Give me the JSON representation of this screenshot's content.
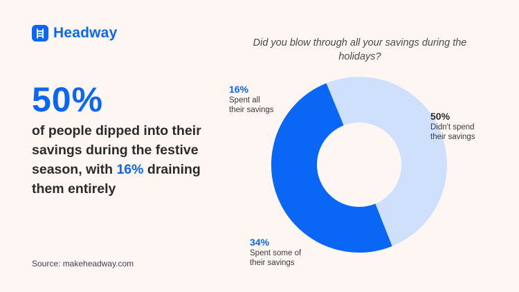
{
  "brand": {
    "name": "Headway",
    "icon": "ladder-icon",
    "color": "#0a66f5"
  },
  "left": {
    "big_stat": "50%",
    "headline_part1": "of people dipped into their savings during the festive season, with ",
    "headline_highlight": "16%",
    "headline_part2": " draining them entirely",
    "source": "Source: makeheadway.com"
  },
  "chart_data": {
    "type": "pie",
    "variant": "donut",
    "title": "Did you blow through all your savings during the holidays?",
    "categories": [
      "Didn't spend their savings",
      "Spent some of their savings",
      "Spent all their savings"
    ],
    "values": [
      50,
      34,
      16
    ],
    "unit": "%",
    "colors": [
      "#cfe0fd",
      "#0a66f5",
      "#0a66f5"
    ],
    "labels": [
      {
        "pct": "50%",
        "line1": "Didn't spend",
        "line2": "their savings"
      },
      {
        "pct": "34%",
        "line1": "Spent some of",
        "line2": "their savings"
      },
      {
        "pct": "16%",
        "line1": "Spent all",
        "line2": "their savings"
      }
    ],
    "start_angle_deg": -22,
    "legend_position": "inline labels"
  }
}
